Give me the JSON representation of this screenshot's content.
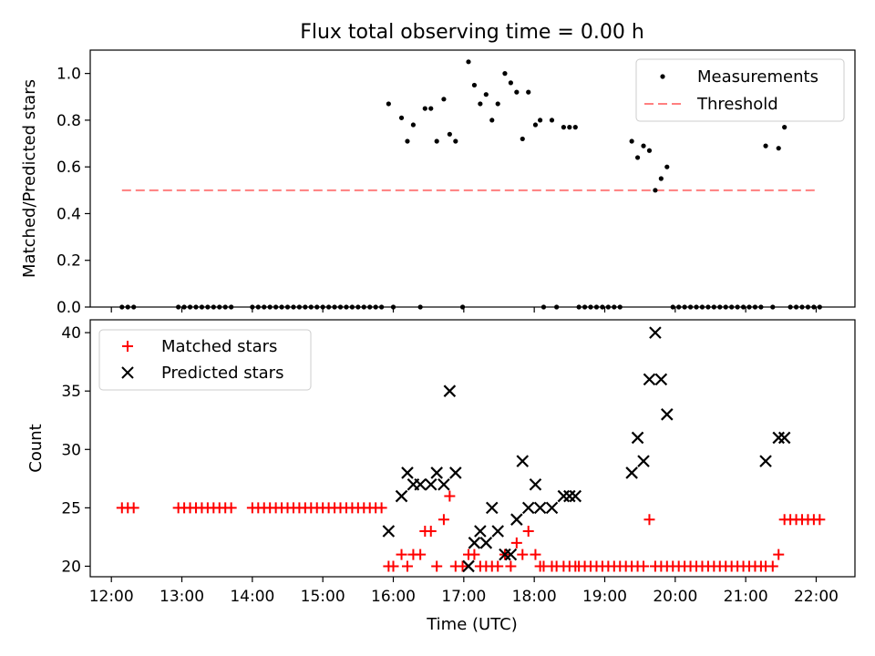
{
  "figure": {
    "title": "Flux total observing time = 0.00 h"
  },
  "chart_data": [
    {
      "type": "scatter",
      "ylabel": "Matched/Predicted stars",
      "ylim": [
        0,
        1.1
      ],
      "xlim_hours": [
        11.7,
        22.55
      ],
      "yticks": [
        "0.0",
        "0.2",
        "0.4",
        "0.6",
        "0.8",
        "1.0"
      ],
      "legend_position": "upper-right",
      "series": [
        {
          "name": "Measurements",
          "kind": "points",
          "color": "#000000",
          "points": [
            [
              "12:09",
              0
            ],
            [
              "12:14",
              0
            ],
            [
              "12:19",
              0
            ],
            [
              "12:57",
              0
            ],
            [
              "13:02",
              0
            ],
            [
              "13:07",
              0
            ],
            [
              "13:12",
              0
            ],
            [
              "13:17",
              0
            ],
            [
              "13:22",
              0
            ],
            [
              "13:27",
              0
            ],
            [
              "13:32",
              0
            ],
            [
              "13:37",
              0
            ],
            [
              "13:42",
              0
            ],
            [
              "14:00",
              0
            ],
            [
              "14:05",
              0
            ],
            [
              "14:10",
              0
            ],
            [
              "14:15",
              0
            ],
            [
              "14:20",
              0
            ],
            [
              "14:25",
              0
            ],
            [
              "14:30",
              0
            ],
            [
              "14:35",
              0
            ],
            [
              "14:40",
              0
            ],
            [
              "14:45",
              0
            ],
            [
              "14:50",
              0
            ],
            [
              "14:55",
              0
            ],
            [
              "15:00",
              0
            ],
            [
              "15:05",
              0
            ],
            [
              "15:10",
              0
            ],
            [
              "15:15",
              0
            ],
            [
              "15:20",
              0
            ],
            [
              "15:25",
              0
            ],
            [
              "15:30",
              0
            ],
            [
              "15:35",
              0
            ],
            [
              "15:40",
              0
            ],
            [
              "15:45",
              0
            ],
            [
              "15:50",
              0
            ],
            [
              "15:56",
              0.87
            ],
            [
              "16:00",
              0
            ],
            [
              "16:07",
              0.81
            ],
            [
              "16:12",
              0.71
            ],
            [
              "16:17",
              0.78
            ],
            [
              "16:23",
              0
            ],
            [
              "16:27",
              0.85
            ],
            [
              "16:32",
              0.85
            ],
            [
              "16:37",
              0.71
            ],
            [
              "16:43",
              0.89
            ],
            [
              "16:48",
              0.74
            ],
            [
              "16:53",
              0.71
            ],
            [
              "16:59",
              0
            ],
            [
              "17:04",
              1.05
            ],
            [
              "17:09",
              0.95
            ],
            [
              "17:14",
              0.87
            ],
            [
              "17:19",
              0.91
            ],
            [
              "17:24",
              0.8
            ],
            [
              "17:29",
              0.87
            ],
            [
              "17:35",
              1.0
            ],
            [
              "17:40",
              0.96
            ],
            [
              "17:45",
              0.92
            ],
            [
              "17:50",
              0.72
            ],
            [
              "17:55",
              0.92
            ],
            [
              "18:01",
              0.78
            ],
            [
              "18:05",
              0.8
            ],
            [
              "18:08",
              0
            ],
            [
              "18:15",
              0.8
            ],
            [
              "18:19",
              0
            ],
            [
              "18:25",
              0.77
            ],
            [
              "18:30",
              0.77
            ],
            [
              "18:35",
              0.77
            ],
            [
              "18:38",
              0
            ],
            [
              "18:43",
              0
            ],
            [
              "18:48",
              0
            ],
            [
              "18:53",
              0
            ],
            [
              "18:58",
              0
            ],
            [
              "19:03",
              0
            ],
            [
              "19:08",
              0
            ],
            [
              "19:13",
              0
            ],
            [
              "19:23",
              0.71
            ],
            [
              "19:28",
              0.64
            ],
            [
              "19:33",
              0.69
            ],
            [
              "19:38",
              0.67
            ],
            [
              "19:43",
              0.5
            ],
            [
              "19:48",
              0.55
            ],
            [
              "19:53",
              0.6
            ],
            [
              "19:58",
              0
            ],
            [
              "20:03",
              0
            ],
            [
              "20:08",
              0
            ],
            [
              "20:13",
              0
            ],
            [
              "20:18",
              0
            ],
            [
              "20:23",
              0
            ],
            [
              "20:28",
              0
            ],
            [
              "20:33",
              0
            ],
            [
              "20:38",
              0
            ],
            [
              "20:43",
              0
            ],
            [
              "20:48",
              0
            ],
            [
              "20:53",
              0
            ],
            [
              "20:58",
              0
            ],
            [
              "21:03",
              0
            ],
            [
              "21:08",
              0
            ],
            [
              "21:13",
              0
            ],
            [
              "21:17",
              0.69
            ],
            [
              "21:23",
              0
            ],
            [
              "21:28",
              0.68
            ],
            [
              "21:33",
              0.77
            ],
            [
              "21:38",
              0
            ],
            [
              "21:43",
              0
            ],
            [
              "21:48",
              0
            ],
            [
              "21:53",
              0
            ],
            [
              "21:58",
              0
            ],
            [
              "22:03",
              0
            ]
          ]
        },
        {
          "name": "Threshold",
          "kind": "dashed-line",
          "color": "#ff7f7f",
          "x": [
            "12:09",
            "22:00"
          ],
          "y": [
            0.5,
            0.5
          ]
        }
      ]
    },
    {
      "type": "scatter",
      "ylabel": "Count",
      "xlabel": "Time (UTC)",
      "ylim": [
        19.1,
        41.1
      ],
      "xlim_hours": [
        11.7,
        22.55
      ],
      "yticks": [
        "20",
        "25",
        "30",
        "35",
        "40"
      ],
      "xticks": [
        "12:00",
        "13:00",
        "14:00",
        "15:00",
        "16:00",
        "17:00",
        "18:00",
        "19:00",
        "20:00",
        "21:00",
        "22:00"
      ],
      "legend_position": "upper-left",
      "series": [
        {
          "name": "Matched stars",
          "marker": "plus",
          "color": "#ff0000",
          "points": [
            [
              "12:09",
              25
            ],
            [
              "12:14",
              25
            ],
            [
              "12:19",
              25
            ],
            [
              "12:57",
              25
            ],
            [
              "13:02",
              25
            ],
            [
              "13:07",
              25
            ],
            [
              "13:12",
              25
            ],
            [
              "13:17",
              25
            ],
            [
              "13:22",
              25
            ],
            [
              "13:27",
              25
            ],
            [
              "13:32",
              25
            ],
            [
              "13:37",
              25
            ],
            [
              "13:42",
              25
            ],
            [
              "14:00",
              25
            ],
            [
              "14:05",
              25
            ],
            [
              "14:10",
              25
            ],
            [
              "14:15",
              25
            ],
            [
              "14:20",
              25
            ],
            [
              "14:25",
              25
            ],
            [
              "14:30",
              25
            ],
            [
              "14:35",
              25
            ],
            [
              "14:40",
              25
            ],
            [
              "14:45",
              25
            ],
            [
              "14:50",
              25
            ],
            [
              "14:55",
              25
            ],
            [
              "15:00",
              25
            ],
            [
              "15:05",
              25
            ],
            [
              "15:10",
              25
            ],
            [
              "15:15",
              25
            ],
            [
              "15:20",
              25
            ],
            [
              "15:25",
              25
            ],
            [
              "15:30",
              25
            ],
            [
              "15:35",
              25
            ],
            [
              "15:40",
              25
            ],
            [
              "15:45",
              25
            ],
            [
              "15:50",
              25
            ],
            [
              "15:56",
              20
            ],
            [
              "16:00",
              20
            ],
            [
              "16:07",
              21
            ],
            [
              "16:12",
              20
            ],
            [
              "16:17",
              21
            ],
            [
              "16:23",
              21
            ],
            [
              "16:27",
              23
            ],
            [
              "16:32",
              23
            ],
            [
              "16:37",
              20
            ],
            [
              "16:43",
              24
            ],
            [
              "16:48",
              26
            ],
            [
              "16:53",
              20
            ],
            [
              "16:59",
              20
            ],
            [
              "17:04",
              21
            ],
            [
              "17:09",
              21
            ],
            [
              "17:14",
              20
            ],
            [
              "17:19",
              20
            ],
            [
              "17:24",
              20
            ],
            [
              "17:29",
              20
            ],
            [
              "17:35",
              21
            ],
            [
              "17:40",
              20
            ],
            [
              "17:45",
              22
            ],
            [
              "17:50",
              21
            ],
            [
              "17:55",
              23
            ],
            [
              "18:01",
              21
            ],
            [
              "18:05",
              20
            ],
            [
              "18:08",
              20
            ],
            [
              "18:15",
              20
            ],
            [
              "18:19",
              20
            ],
            [
              "18:25",
              20
            ],
            [
              "18:30",
              20
            ],
            [
              "18:35",
              20
            ],
            [
              "18:38",
              20
            ],
            [
              "18:43",
              20
            ],
            [
              "18:48",
              20
            ],
            [
              "18:53",
              20
            ],
            [
              "18:58",
              20
            ],
            [
              "19:03",
              20
            ],
            [
              "19:08",
              20
            ],
            [
              "19:13",
              20
            ],
            [
              "19:18",
              20
            ],
            [
              "19:23",
              20
            ],
            [
              "19:28",
              20
            ],
            [
              "19:33",
              20
            ],
            [
              "19:38",
              24
            ],
            [
              "19:43",
              20
            ],
            [
              "19:48",
              20
            ],
            [
              "19:53",
              20
            ],
            [
              "19:58",
              20
            ],
            [
              "20:03",
              20
            ],
            [
              "20:08",
              20
            ],
            [
              "20:13",
              20
            ],
            [
              "20:18",
              20
            ],
            [
              "20:23",
              20
            ],
            [
              "20:28",
              20
            ],
            [
              "20:33",
              20
            ],
            [
              "20:38",
              20
            ],
            [
              "20:43",
              20
            ],
            [
              "20:48",
              20
            ],
            [
              "20:53",
              20
            ],
            [
              "20:58",
              20
            ],
            [
              "21:03",
              20
            ],
            [
              "21:08",
              20
            ],
            [
              "21:13",
              20
            ],
            [
              "21:17",
              20
            ],
            [
              "21:23",
              20
            ],
            [
              "21:28",
              21
            ],
            [
              "21:33",
              24
            ],
            [
              "21:38",
              24
            ],
            [
              "21:43",
              24
            ],
            [
              "21:48",
              24
            ],
            [
              "21:53",
              24
            ],
            [
              "21:58",
              24
            ],
            [
              "22:03",
              24
            ]
          ]
        },
        {
          "name": "Predicted stars",
          "marker": "x",
          "color": "#000000",
          "points": [
            [
              "15:56",
              23
            ],
            [
              "16:07",
              26
            ],
            [
              "16:12",
              28
            ],
            [
              "16:17",
              27
            ],
            [
              "16:23",
              27
            ],
            [
              "16:32",
              27
            ],
            [
              "16:37",
              28
            ],
            [
              "16:43",
              27
            ],
            [
              "16:48",
              35
            ],
            [
              "16:53",
              28
            ],
            [
              "17:04",
              20
            ],
            [
              "17:09",
              22
            ],
            [
              "17:14",
              23
            ],
            [
              "17:19",
              22
            ],
            [
              "17:24",
              25
            ],
            [
              "17:29",
              23
            ],
            [
              "17:35",
              21
            ],
            [
              "17:40",
              21
            ],
            [
              "17:45",
              24
            ],
            [
              "17:50",
              29
            ],
            [
              "17:55",
              25
            ],
            [
              "18:01",
              27
            ],
            [
              "18:05",
              25
            ],
            [
              "18:15",
              25
            ],
            [
              "18:25",
              26
            ],
            [
              "18:30",
              26
            ],
            [
              "18:35",
              26
            ],
            [
              "19:23",
              28
            ],
            [
              "19:28",
              31
            ],
            [
              "19:33",
              29
            ],
            [
              "19:38",
              36
            ],
            [
              "19:43",
              40
            ],
            [
              "19:48",
              36
            ],
            [
              "19:53",
              33
            ],
            [
              "21:17",
              29
            ],
            [
              "21:28",
              31
            ],
            [
              "21:33",
              31
            ]
          ]
        }
      ]
    }
  ]
}
